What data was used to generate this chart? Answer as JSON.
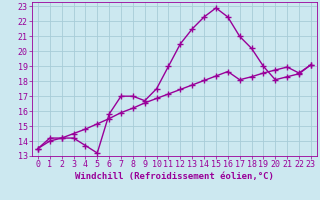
{
  "xlabel": "Windchill (Refroidissement éolien,°C)",
  "bg_color": "#cce8f0",
  "grid_color": "#a8ccd8",
  "line_color": "#990099",
  "xlim": [
    -0.5,
    23.5
  ],
  "ylim": [
    13,
    23.3
  ],
  "xticks": [
    0,
    1,
    2,
    3,
    4,
    5,
    6,
    7,
    8,
    9,
    10,
    11,
    12,
    13,
    14,
    15,
    16,
    17,
    18,
    19,
    20,
    21,
    22,
    23
  ],
  "yticks": [
    13,
    14,
    15,
    16,
    17,
    18,
    19,
    20,
    21,
    22,
    23
  ],
  "line1_x": [
    0,
    1,
    2,
    3,
    4,
    5,
    6,
    7,
    8,
    9,
    10,
    11,
    12,
    13,
    14,
    15,
    16,
    17,
    18,
    19,
    20,
    21,
    22,
    23
  ],
  "line1_y": [
    13.5,
    14.2,
    14.2,
    14.2,
    13.7,
    13.2,
    15.8,
    17.0,
    17.0,
    16.7,
    17.5,
    19.0,
    20.5,
    21.5,
    22.3,
    22.9,
    22.3,
    21.0,
    20.2,
    19.0,
    18.1,
    18.3,
    18.5,
    19.1
  ],
  "line2_x": [
    0,
    1,
    2,
    3,
    4,
    5,
    6,
    7,
    8,
    9,
    10,
    11,
    12,
    13,
    14,
    15,
    16,
    17,
    18,
    19,
    20,
    21,
    22,
    23
  ],
  "line2_y": [
    13.5,
    14.0,
    14.2,
    14.5,
    14.8,
    15.15,
    15.5,
    15.9,
    16.2,
    16.55,
    16.85,
    17.15,
    17.45,
    17.75,
    18.05,
    18.35,
    18.65,
    18.1,
    18.3,
    18.55,
    18.75,
    18.95,
    18.55,
    19.1
  ],
  "xlabel_fontsize": 6.5,
  "tick_fontsize": 6,
  "linewidth": 1.0,
  "markersize": 4
}
